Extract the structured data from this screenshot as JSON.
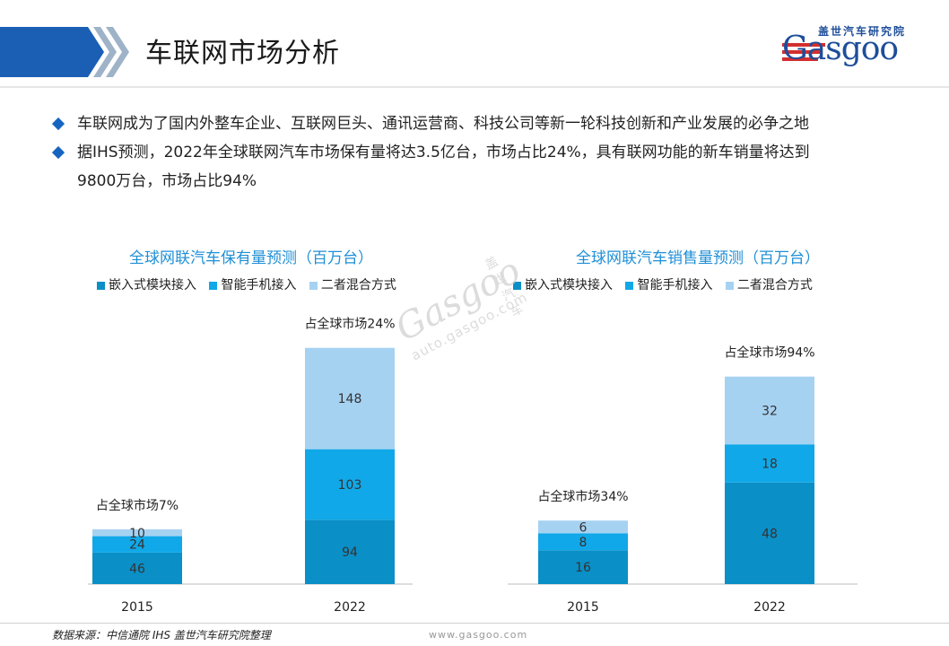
{
  "header": {
    "title": "车联网市场分析"
  },
  "logo": {
    "cn": "盖世汽车研究院",
    "en": "Gasgoo"
  },
  "bullets": [
    "车联网成为了国内外整车企业、互联网巨头、通讯运营商、科技公司等新一轮科技创新和产业发展的必争之地",
    "据IHS预测，2022年全球联网汽车市场保有量将达3.5亿台，市场占比24%，具有联网功能的新车销量将达到",
    "9800万台，市场占比94%"
  ],
  "watermark": {
    "cn": "盖 世 汽 车",
    "brand": "Gasgoo",
    "url": "auto.gasgoo.com"
  },
  "colors": {
    "series1": "#0a8fc7",
    "series2": "#10a8e8",
    "series3": "#a6d2f2",
    "title": "#1f8fd6"
  },
  "chart_data": [
    {
      "type": "bar",
      "stacked": true,
      "title": "全球网联汽车保有量预测（百万台）",
      "categories": [
        "2015",
        "2022"
      ],
      "series": [
        {
          "name": "嵌入式模块接入",
          "values": [
            46,
            94
          ]
        },
        {
          "name": "智能手机接入",
          "values": [
            24,
            103
          ]
        },
        {
          "name": "二者混合方式",
          "values": [
            10,
            148
          ]
        }
      ],
      "annotations": [
        "占全球市场7%",
        "占全球市场24%"
      ],
      "legend": "top",
      "grid": false
    },
    {
      "type": "bar",
      "stacked": true,
      "title": "全球网联汽车销售量预测（百万台）",
      "categories": [
        "2015",
        "2022"
      ],
      "series": [
        {
          "name": "嵌入式模块接入",
          "values": [
            16,
            48
          ]
        },
        {
          "name": "智能手机接入",
          "values": [
            8,
            18
          ]
        },
        {
          "name": "二者混合方式",
          "values": [
            6,
            32
          ]
        }
      ],
      "annotations": [
        "占全球市场34%",
        "占全球市场94%"
      ],
      "legend": "top",
      "grid": false
    }
  ],
  "footer": {
    "source": "数据来源：中信通院  IHS  盖世汽车研究院整理",
    "url": "www.gasgoo.com"
  }
}
